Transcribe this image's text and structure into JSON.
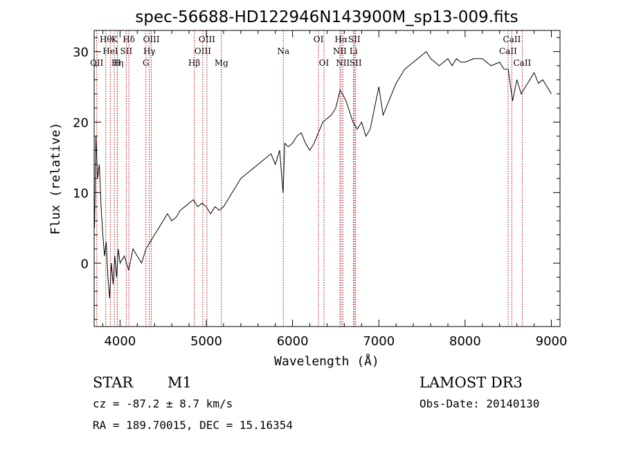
{
  "chart_data": {
    "type": "line",
    "title": "spec-56688-HD122946N143900M_sp13-009.fits",
    "xlabel": "Wavelength (Å)",
    "ylabel": "Flux (relative)",
    "xlim": [
      3700,
      9100
    ],
    "ylim": [
      -9,
      33
    ],
    "x_ticks": [
      4000,
      5000,
      6000,
      7000,
      8000,
      9000
    ],
    "y_ticks": [
      0,
      10,
      20,
      30
    ],
    "grid": false,
    "line_color": "#000000",
    "marker_color": "#aa0000",
    "series": [
      {
        "x": [
          3705,
          3720,
          3740,
          3760,
          3780,
          3800,
          3820,
          3840,
          3860,
          3880,
          3900,
          3920,
          3940,
          3960,
          3980,
          4000,
          4050,
          4100,
          4150,
          4200,
          4250,
          4300,
          4350,
          4400,
          4450,
          4500,
          4550,
          4600,
          4650,
          4700,
          4750,
          4800,
          4850,
          4900,
          4950,
          5000,
          5050,
          5100,
          5150,
          5200,
          5250,
          5300,
          5350,
          5400,
          5450,
          5500,
          5550,
          5600,
          5650,
          5700,
          5750,
          5800,
          5850,
          5890,
          5910,
          5950,
          6000,
          6050,
          6100,
          6150,
          6200,
          6250,
          6300,
          6350,
          6400,
          6450,
          6500,
          6550,
          6580,
          6620,
          6660,
          6700,
          6750,
          6800,
          6850,
          6900,
          6950,
          7000,
          7050,
          7100,
          7150,
          7200,
          7250,
          7300,
          7350,
          7400,
          7450,
          7500,
          7550,
          7600,
          7650,
          7700,
          7750,
          7800,
          7850,
          7900,
          7950,
          8000,
          8100,
          8200,
          8300,
          8400,
          8450,
          8500,
          8550,
          8600,
          8650,
          8700,
          8750,
          8800,
          8850,
          8900,
          8950,
          9000
        ],
        "y": [
          5,
          18,
          12,
          14,
          8,
          4,
          1,
          3,
          -2,
          -5,
          0,
          -3,
          1,
          -2,
          2,
          0,
          1,
          -1,
          2,
          1,
          0,
          2,
          3,
          4,
          5,
          6,
          7,
          6,
          6.5,
          7.5,
          8,
          8.5,
          9,
          8,
          8.5,
          8,
          7,
          8,
          7.5,
          8,
          9,
          10,
          11,
          12,
          12.5,
          13,
          13.5,
          14,
          14.5,
          15,
          15.5,
          14,
          16,
          10,
          17,
          16.5,
          17,
          18,
          18.5,
          17,
          16,
          17,
          18.5,
          20,
          20.5,
          21,
          22,
          24.5,
          24,
          23,
          21.5,
          20,
          19,
          20,
          18,
          19,
          22,
          25,
          21,
          22.5,
          24,
          25.5,
          26.5,
          27.5,
          28,
          28.5,
          29,
          29.5,
          30,
          29,
          28.5,
          28,
          28.5,
          29,
          28,
          29,
          28.5,
          28.5,
          29,
          29,
          28,
          28.5,
          27.5,
          27.5,
          23,
          26,
          24,
          25,
          26,
          27,
          25.5,
          26,
          25,
          24
        ]
      }
    ],
    "line_markers": [
      {
        "x": 3730,
        "row": 3,
        "label": "OII"
      },
      {
        "x": 3835,
        "row": 1,
        "label": "Hθ"
      },
      {
        "x": 3889,
        "row": 2,
        "label": "HeI"
      },
      {
        "x": 3970,
        "row": 3,
        "label": "Hη"
      },
      {
        "x": 3934,
        "row": 1,
        "label": "K"
      },
      {
        "x": 3968,
        "row": 3,
        "label": "H"
      },
      {
        "x": 4072,
        "row": 2,
        "label": "SII"
      },
      {
        "x": 4102,
        "row": 1,
        "label": "Hδ"
      },
      {
        "x": 4300,
        "row": 3,
        "label": "G"
      },
      {
        "x": 4340,
        "row": 2,
        "label": "Hγ"
      },
      {
        "x": 4363,
        "row": 1,
        "label": "OIII"
      },
      {
        "x": 4861,
        "row": 3,
        "label": "Hβ"
      },
      {
        "x": 4959,
        "row": 2,
        "label": "OIII"
      },
      {
        "x": 5007,
        "row": 1,
        "label": "OIII"
      },
      {
        "x": 5175,
        "row": 3,
        "label": "Mg"
      },
      {
        "x": 5893,
        "row": 2,
        "label": "Na"
      },
      {
        "x": 6300,
        "row": 1,
        "label": "OI"
      },
      {
        "x": 6364,
        "row": 3,
        "label": "OI"
      },
      {
        "x": 6548,
        "row": 2,
        "label": "NII"
      },
      {
        "x": 6563,
        "row": 1,
        "label": "Hα"
      },
      {
        "x": 6583,
        "row": 3,
        "label": "NII"
      },
      {
        "x": 6707,
        "row": 2,
        "label": "Li"
      },
      {
        "x": 6716,
        "row": 1,
        "label": "SII"
      },
      {
        "x": 6731,
        "row": 3,
        "label": "SII"
      },
      {
        "x": 8498,
        "row": 2,
        "label": "CaII"
      },
      {
        "x": 8542,
        "row": 1,
        "label": "CaII"
      },
      {
        "x": 8662,
        "row": 3,
        "label": "CaII"
      }
    ]
  },
  "info": {
    "class_label": "STAR",
    "subclass_label": "M1",
    "survey": "LAMOST DR3",
    "cz": "cz = -87.2 ± 8.7 km/s",
    "obs_date": "Obs-Date: 20140130",
    "coords": "RA = 189.70015, DEC =  15.16354"
  }
}
